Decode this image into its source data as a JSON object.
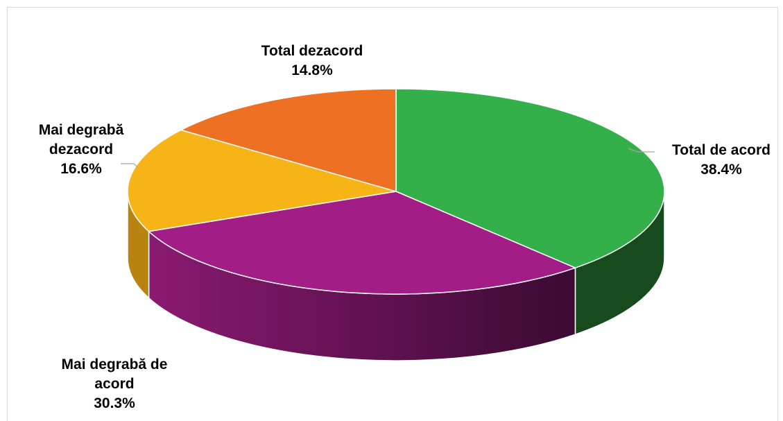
{
  "chart_data": {
    "type": "pie",
    "style": "3d",
    "categories": [
      "Total de acord",
      "Mai degrabă de acord",
      "Mai degrabă dezacord",
      "Total dezacord"
    ],
    "values": [
      38.4,
      30.3,
      16.6,
      14.8
    ],
    "value_labels": [
      "38.4%",
      "30.3%",
      "16.6%",
      "14.8%"
    ],
    "colors": [
      "#33b04a",
      "#a21e86",
      "#f7b417",
      "#ee7023"
    ],
    "label_lines": {
      "total_acord": [
        "Total de acord"
      ],
      "degraba_acord": [
        "Mai degrabă de",
        "acord"
      ],
      "degraba_dezacord": [
        "Mai degrabă",
        "dezacord"
      ],
      "total_dezacord": [
        "Total dezacord"
      ]
    },
    "legend": "none"
  }
}
